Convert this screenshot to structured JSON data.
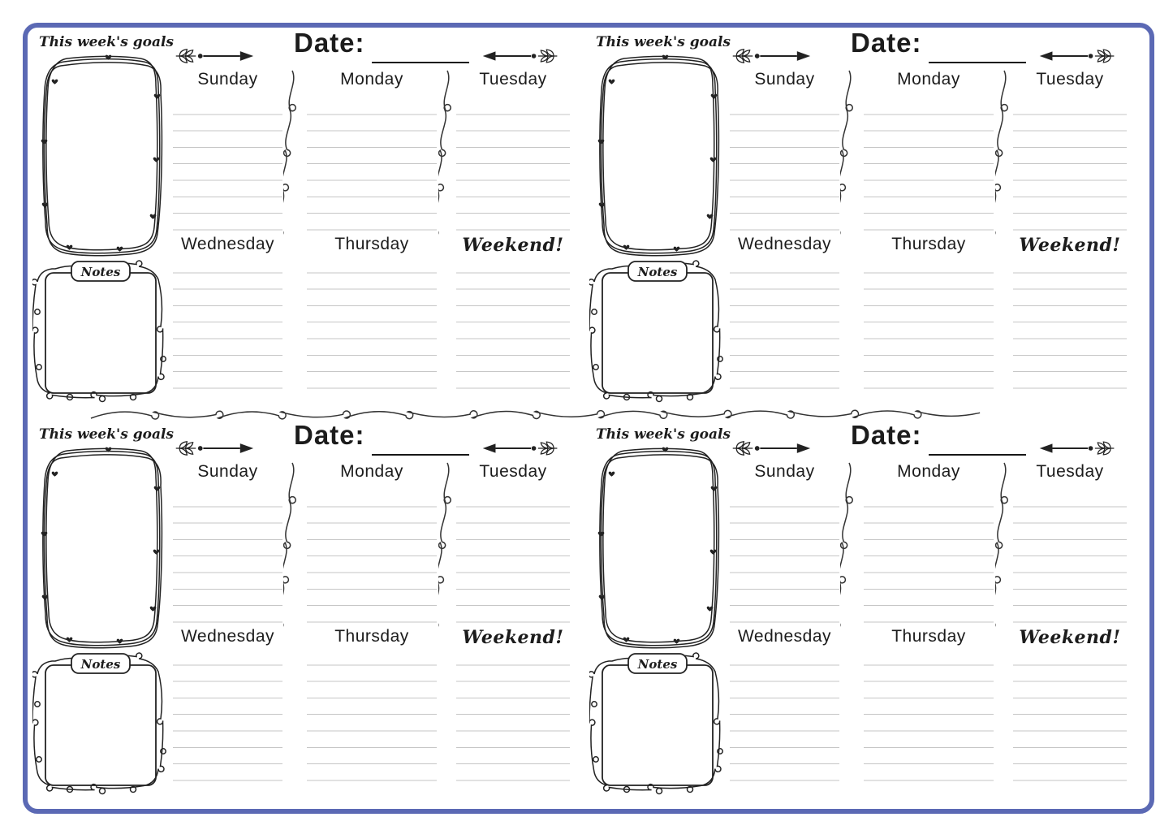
{
  "page": {
    "background": "#ffffff",
    "border_color": "#5b69b4",
    "ink_color": "#222222",
    "ruled_line_color": "#c6c6c6"
  },
  "planner": {
    "goals_title": "This week's goals",
    "notes_label": "Notes",
    "date_label": "Date:",
    "columns": [
      {
        "top": "Sunday",
        "bottom": "Wednesday"
      },
      {
        "top": "Monday",
        "bottom": "Thursday"
      },
      {
        "top": "Tuesday",
        "bottom": "Weekend!"
      }
    ],
    "lines_per_section": 8,
    "quadrant_count": 4,
    "icons": {
      "arrow_right": "arrow-right-sprig-icon",
      "arrow_left": "arrow-left-sprig-icon",
      "goals_frame": "doodle-heart-frame-icon",
      "notes_frame": "doodle-loop-frame-icon",
      "dividers": "loopy-string-divider-icon"
    }
  }
}
